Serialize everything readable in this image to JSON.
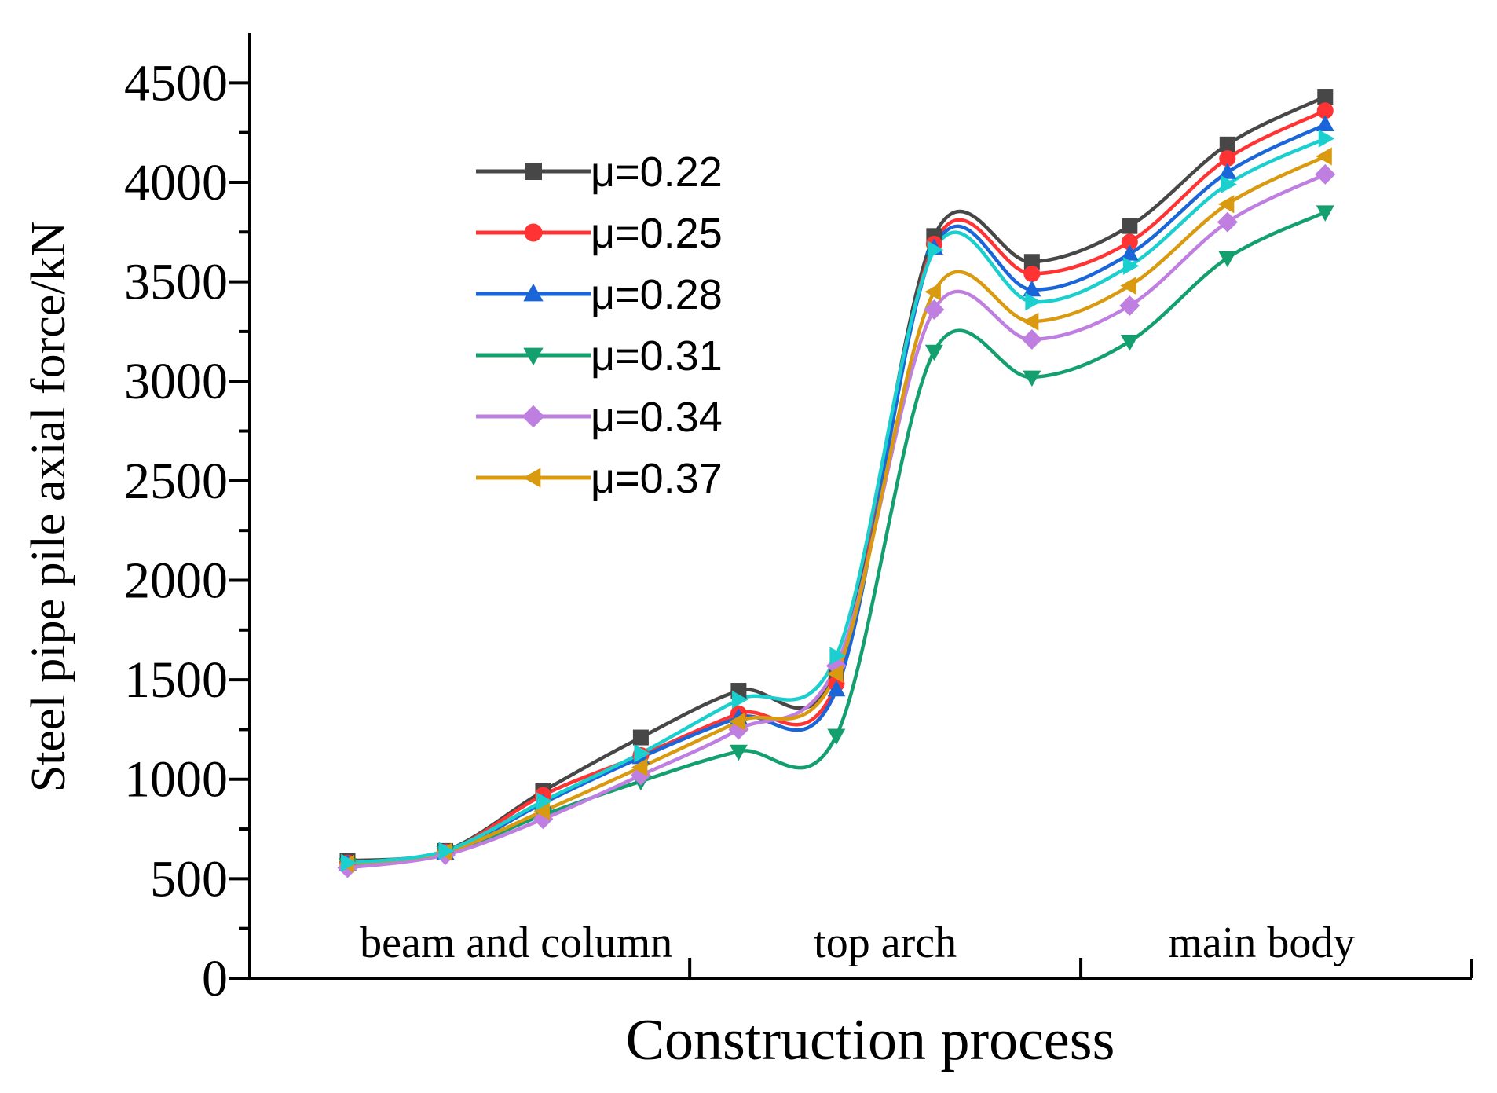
{
  "chart_data": {
    "type": "line",
    "title": "",
    "xlabel": "Construction process",
    "ylabel": "Steel pipe pile axial force/kN",
    "ylim": [
      0,
      4750
    ],
    "yticks": [
      0,
      500,
      1000,
      1500,
      2000,
      2500,
      3000,
      3500,
      4000,
      4500
    ],
    "x": [
      1,
      2,
      3,
      4,
      5,
      6,
      7,
      8,
      9,
      10,
      11
    ],
    "xlim": [
      0,
      12.5
    ],
    "stage_labels": [
      "beam and column",
      "top arch",
      "main body"
    ],
    "stage_boundaries": [
      4,
      8
    ],
    "legend_position": "upper-left",
    "grid": false,
    "series": [
      {
        "name": "μ=0.22",
        "color": "#474747",
        "marker": "square",
        "values": [
          590,
          640,
          940,
          1210,
          1445,
          1540,
          3730,
          3600,
          3780,
          4190,
          4430
        ]
      },
      {
        "name": "μ=0.25",
        "color": "#ff3333",
        "marker": "circle",
        "values": [
          580,
          635,
          920,
          1120,
          1330,
          1480,
          3690,
          3540,
          3700,
          4120,
          4360
        ]
      },
      {
        "name": "μ=0.28",
        "color": "#1a66d9",
        "marker": "triangle-up",
        "values": [
          575,
          630,
          880,
          1110,
          1310,
          1450,
          3670,
          3460,
          3640,
          4050,
          4290
        ]
      },
      {
        "name": "μ=0.31",
        "color": "#14a06e",
        "marker": "triangle-down",
        "values": [
          570,
          630,
          820,
          990,
          1140,
          1220,
          3150,
          3020,
          3200,
          3620,
          3850
        ]
      },
      {
        "name": "μ=0.34",
        "color": "#bf7fe0",
        "marker": "diamond",
        "values": [
          555,
          620,
          800,
          1020,
          1250,
          1570,
          3360,
          3210,
          3380,
          3800,
          4040
        ]
      },
      {
        "name": "μ=0.37",
        "color": "#d99a0f",
        "marker": "triangle-left",
        "values": [
          575,
          635,
          840,
          1060,
          1290,
          1530,
          3450,
          3300,
          3480,
          3890,
          4130
        ]
      },
      {
        "name": "",
        "color": "#1ccfcf",
        "marker": "triangle-right",
        "values": [
          580,
          640,
          890,
          1130,
          1400,
          1620,
          3660,
          3400,
          3580,
          3990,
          4220
        ]
      }
    ]
  }
}
